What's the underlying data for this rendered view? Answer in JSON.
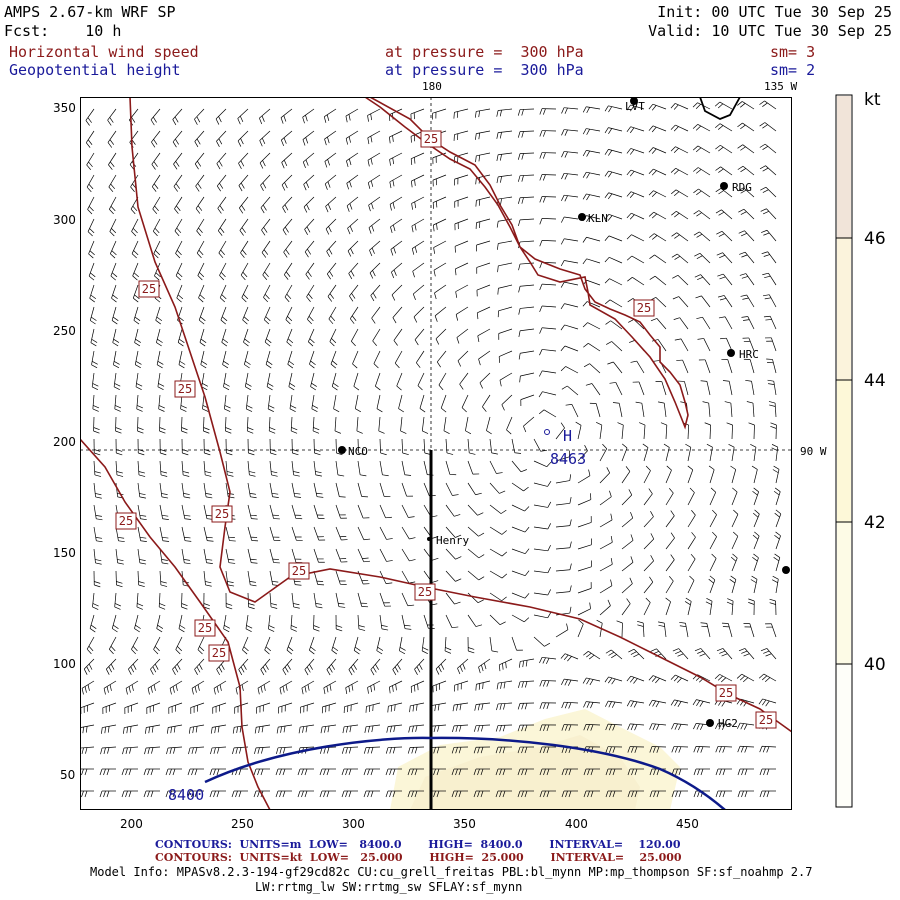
{
  "header": {
    "model": "AMPS 2.67-km WRF SP",
    "forecast": "Fcst:    10 h",
    "init": "Init: 00 UTC Tue 30 Sep 25",
    "valid": "Valid: 10 UTC Tue 30 Sep 25",
    "field1_name": "Horizontal wind speed",
    "field1_level": "at pressure =  300 hPa",
    "field1_sm": "sm= 3",
    "field2_name": "Geopotential height",
    "field2_level": "at pressure =  300 hPa",
    "field2_sm": "sm= 2"
  },
  "map": {
    "lon_labels": {
      "top_center": "180",
      "top_right": "135 W",
      "right": "90 W"
    },
    "stations": [
      {
        "id": "LVT",
        "label": "LVT"
      },
      {
        "id": "RDG",
        "label": "RDG"
      },
      {
        "id": "KLN",
        "label": "KLN"
      },
      {
        "id": "HRC",
        "label": "HRC"
      },
      {
        "id": "NCO",
        "label": "NCO"
      },
      {
        "id": "Henry",
        "label": "Henry"
      },
      {
        "id": "HG2",
        "label": "HG2"
      },
      {
        "id": "EDGE",
        "label": ""
      }
    ],
    "high": {
      "symbol": "H",
      "value": "8463"
    },
    "height_label": "8400",
    "wind_contour_value": "25"
  },
  "axes": {
    "x_ticks": [
      "200",
      "250",
      "300",
      "350",
      "400",
      "450"
    ],
    "y_ticks": [
      "350",
      "300",
      "250",
      "200",
      "150",
      "100",
      "50"
    ]
  },
  "colorbar": {
    "unit": "kt",
    "ticks": [
      "46",
      "44",
      "42",
      "40"
    ]
  },
  "footer": {
    "line1": "CONTOURS:  UNITS=m  LOW=   8400.0       HIGH=  8400.0       INTERVAL=    120.00",
    "line2": "CONTOURS:  UNITS=kt  LOW=   25.000       HIGH=  25.000       INTERVAL=    25.000",
    "model_info": "Model Info: MPASv8.2.3-194-gf29cd82c CU:cu_grell_freitas PBL:bl_mynn MP:mp_thompson SF:sf_noahmp 2.7",
    "model_info2": "LW:rrtmg_lw SW:rrtmg_sw SFLAY:sf_mynn"
  },
  "colors": {
    "wind_contour": "#8b1a1a",
    "height_contour": "#0d1a8a",
    "shade_light": "#fbf6d8",
    "shade_mid": "#f7eec8"
  }
}
